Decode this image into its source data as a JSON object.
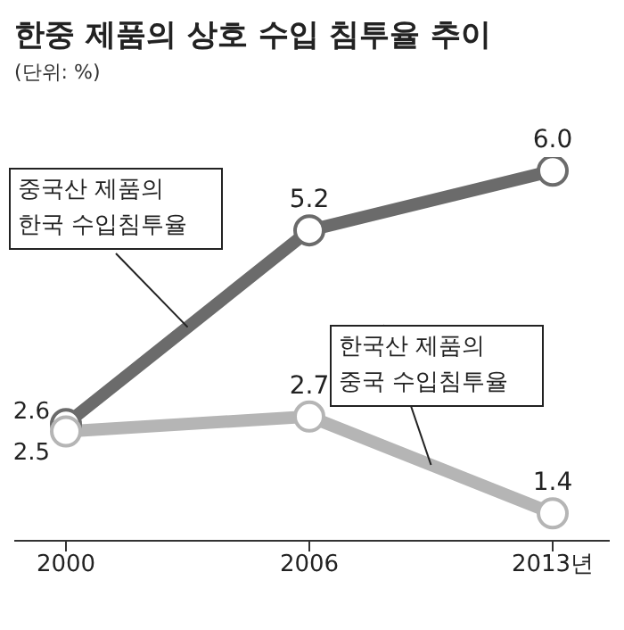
{
  "chart_data": {
    "type": "line",
    "title": "한중 제품의 상호 수입 침투율 추이",
    "subtitle": "(단위: %)",
    "categories": [
      "2000",
      "2006",
      "2013년"
    ],
    "series": [
      {
        "name": "중국산 제품의 한국 수입침투율",
        "color": "#6b6b6b",
        "values": [
          2.6,
          5.2,
          6.0
        ],
        "value_labels": [
          "2.6",
          "5.2",
          "6.0"
        ]
      },
      {
        "name": "한국산 제품의 중국 수입침투율",
        "color": "#b5b5b5",
        "values": [
          2.5,
          2.7,
          1.4
        ],
        "value_labels": [
          "2.5",
          "2.7",
          "1.4"
        ]
      }
    ],
    "marker": "circle",
    "grid": false,
    "legend": false
  }
}
